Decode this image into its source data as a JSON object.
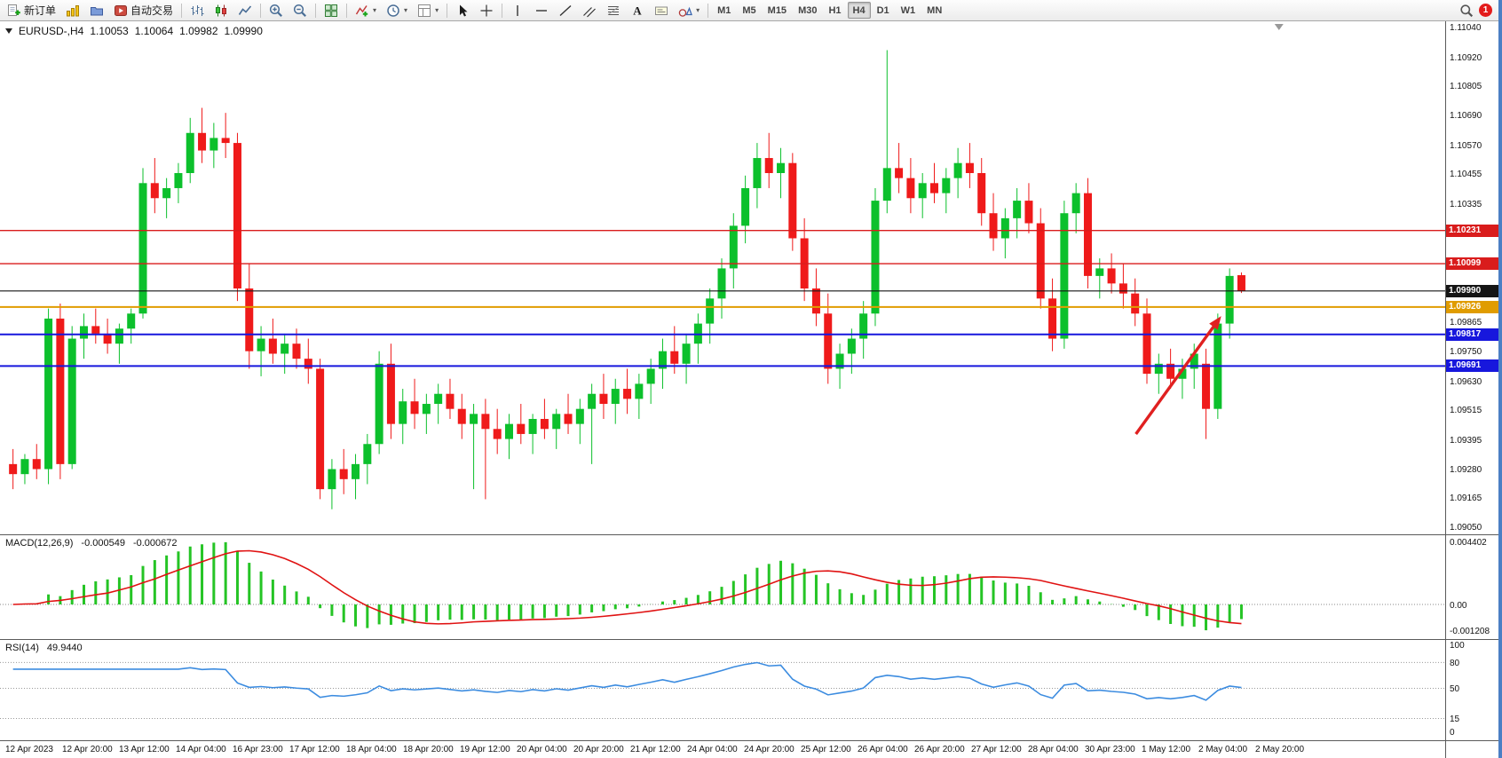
{
  "toolbar": {
    "items": [
      {
        "name": "new-order-button",
        "glyph": "new-order",
        "label": "新订单"
      },
      {
        "name": "charts-button",
        "glyph": "charts"
      },
      {
        "name": "profiles-button",
        "glyph": "profiles"
      },
      {
        "name": "autotrading-button",
        "glyph": "autotrading",
        "label": "自动交易"
      },
      {
        "type": "sep"
      },
      {
        "name": "bars-mode-button",
        "glyph": "bars-mode"
      },
      {
        "name": "candles-mode-button",
        "glyph": "candles-mode"
      },
      {
        "name": "line-mode-button",
        "glyph": "line-mode"
      },
      {
        "type": "sep"
      },
      {
        "name": "zoom-in-button",
        "glyph": "zoom-in"
      },
      {
        "name": "zoom-out-button",
        "glyph": "zoom-out"
      },
      {
        "type": "sep"
      },
      {
        "name": "tile-windows-button",
        "glyph": "tile-windows"
      },
      {
        "type": "sep"
      },
      {
        "name": "indicators-button",
        "glyph": "indicators",
        "dropdown": true
      },
      {
        "name": "periods-button",
        "glyph": "periods",
        "dropdown": true
      },
      {
        "name": "templates-button",
        "glyph": "templates",
        "dropdown": true
      },
      {
        "type": "sep"
      },
      {
        "name": "cursor-button",
        "glyph": "cursor"
      },
      {
        "name": "crosshair-button",
        "glyph": "crosshair"
      },
      {
        "type": "sep"
      },
      {
        "name": "vertical-line-button",
        "glyph": "vline"
      },
      {
        "name": "horizontal-line-button",
        "glyph": "hline"
      },
      {
        "name": "trendline-button",
        "glyph": "trendline"
      },
      {
        "name": "equidistant-channel-button",
        "glyph": "channel"
      },
      {
        "name": "fibonacci-button",
        "glyph": "fibo"
      },
      {
        "name": "text-button",
        "glyph": "text"
      },
      {
        "name": "text-label-button",
        "glyph": "label"
      },
      {
        "name": "arrows-button",
        "glyph": "shapes",
        "dropdown": true
      },
      {
        "type": "sep"
      }
    ],
    "timeframes": [
      "M1",
      "M5",
      "M15",
      "M30",
      "H1",
      "H4",
      "D1",
      "W1",
      "MN"
    ],
    "active_timeframe": "H4",
    "notification_count": "1"
  },
  "chart_header": {
    "symbol_period": "EURUSD-,H4",
    "open": "1.10053",
    "high": "1.10064",
    "low": "1.09982",
    "close": "1.09990"
  },
  "chart_data": {
    "type": "candlestick",
    "title": "EURUSD-,H4",
    "symbol": "EURUSD-",
    "timeframe": "H4",
    "price_axis": {
      "top": 1.11065,
      "bottom": 1.0902,
      "ticks": [
        "1.11040",
        "1.10920",
        "1.10805",
        "1.10690",
        "1.10570",
        "1.10455",
        "1.10335",
        "1.09865",
        "1.09750",
        "1.09630",
        "1.09515",
        "1.09395",
        "1.09280",
        "1.09165",
        "1.09050"
      ]
    },
    "hlines": [
      {
        "price": 1.10231,
        "label": "1.10231",
        "color": "#d91c1c",
        "width": 1.4
      },
      {
        "price": 1.10099,
        "label": "1.10099",
        "color": "#d91c1c",
        "width": 1.4
      },
      {
        "price": 1.0999,
        "label": "1.09990",
        "color": "#151515",
        "width": 1.1
      },
      {
        "price": 1.09926,
        "label": "1.09926",
        "color": "#e09c00",
        "width": 2
      },
      {
        "price": 1.09817,
        "label": "1.09817",
        "color": "#1717dd",
        "width": 2
      },
      {
        "price": 1.09691,
        "label": "1.09691",
        "color": "#1717dd",
        "width": 2
      }
    ],
    "candles": [
      [
        1.093,
        1.0936,
        1.092,
        1.0926
      ],
      [
        1.0926,
        1.0934,
        1.0922,
        1.0932
      ],
      [
        1.0932,
        1.0938,
        1.0924,
        1.0928
      ],
      [
        1.0928,
        1.0992,
        1.0922,
        1.0988
      ],
      [
        1.0988,
        1.0994,
        1.0924,
        1.093
      ],
      [
        1.093,
        1.0985,
        1.0928,
        1.098
      ],
      [
        1.098,
        1.099,
        1.0972,
        1.0985
      ],
      [
        1.0985,
        1.0992,
        1.0978,
        1.0982
      ],
      [
        1.0982,
        1.0988,
        1.0974,
        1.0978
      ],
      [
        1.0978,
        1.0986,
        1.097,
        1.0984
      ],
      [
        1.0984,
        1.0992,
        1.0978,
        1.099
      ],
      [
        1.099,
        1.1048,
        1.0988,
        1.1042
      ],
      [
        1.1042,
        1.1052,
        1.103,
        1.1036
      ],
      [
        1.1036,
        1.1044,
        1.1028,
        1.104
      ],
      [
        1.104,
        1.105,
        1.1034,
        1.1046
      ],
      [
        1.1046,
        1.1068,
        1.1042,
        1.1062
      ],
      [
        1.1062,
        1.1072,
        1.105,
        1.1055
      ],
      [
        1.1055,
        1.1066,
        1.1048,
        1.106
      ],
      [
        1.106,
        1.107,
        1.1052,
        1.1058
      ],
      [
        1.1058,
        1.1062,
        1.0995,
        1.1
      ],
      [
        1.1,
        1.101,
        1.0968,
        1.0975
      ],
      [
        1.0975,
        1.0985,
        1.0965,
        1.098
      ],
      [
        1.098,
        1.0988,
        1.097,
        1.0974
      ],
      [
        1.0974,
        1.0982,
        1.0966,
        1.0978
      ],
      [
        1.0978,
        1.0984,
        1.0968,
        1.0972
      ],
      [
        1.0972,
        1.098,
        1.0962,
        1.0968
      ],
      [
        1.0968,
        1.0972,
        1.0916,
        1.092
      ],
      [
        1.092,
        1.0932,
        1.0912,
        1.0928
      ],
      [
        1.0928,
        1.0936,
        1.0918,
        1.0924
      ],
      [
        1.0924,
        1.0934,
        1.0916,
        1.093
      ],
      [
        1.093,
        1.0942,
        1.0922,
        1.0938
      ],
      [
        1.0938,
        1.0975,
        1.0934,
        1.097
      ],
      [
        1.097,
        1.0978,
        1.094,
        1.0946
      ],
      [
        1.0946,
        1.096,
        1.0938,
        1.0955
      ],
      [
        1.0955,
        1.0964,
        1.0944,
        1.095
      ],
      [
        1.095,
        1.0958,
        1.0942,
        1.0954
      ],
      [
        1.0954,
        1.0962,
        1.0946,
        1.0958
      ],
      [
        1.0958,
        1.0964,
        1.0948,
        1.0952
      ],
      [
        1.0952,
        1.0958,
        1.094,
        1.0946
      ],
      [
        1.0946,
        1.0954,
        1.092,
        1.095
      ],
      [
        1.095,
        1.0956,
        1.0916,
        1.0944
      ],
      [
        1.0944,
        1.0952,
        1.0934,
        1.094
      ],
      [
        1.094,
        1.095,
        1.0932,
        1.0946
      ],
      [
        1.0946,
        1.0954,
        1.0938,
        1.0942
      ],
      [
        1.0942,
        1.095,
        1.0934,
        1.0948
      ],
      [
        1.0948,
        1.0956,
        1.094,
        1.0944
      ],
      [
        1.0944,
        1.0952,
        1.0936,
        1.095
      ],
      [
        1.095,
        1.0958,
        1.0942,
        1.0946
      ],
      [
        1.0946,
        1.0956,
        1.0938,
        1.0952
      ],
      [
        1.0952,
        1.0962,
        1.093,
        1.0958
      ],
      [
        1.0958,
        1.0966,
        1.0948,
        1.0954
      ],
      [
        1.0954,
        1.0964,
        1.0946,
        1.096
      ],
      [
        1.096,
        1.0968,
        1.095,
        1.0956
      ],
      [
        1.0956,
        1.0966,
        1.0948,
        1.0962
      ],
      [
        1.0962,
        1.0972,
        1.0954,
        1.0968
      ],
      [
        1.0968,
        1.098,
        1.096,
        1.0975
      ],
      [
        1.0975,
        1.0985,
        1.0966,
        1.097
      ],
      [
        1.097,
        1.0982,
        1.0962,
        1.0978
      ],
      [
        1.0978,
        1.099,
        1.097,
        1.0986
      ],
      [
        1.0986,
        1.1,
        1.0978,
        1.0996
      ],
      [
        1.0996,
        1.1012,
        1.0988,
        1.1008
      ],
      [
        1.1008,
        1.103,
        1.1,
        1.1025
      ],
      [
        1.1025,
        1.1045,
        1.1018,
        1.104
      ],
      [
        1.104,
        1.1058,
        1.1032,
        1.1052
      ],
      [
        1.1052,
        1.1062,
        1.104,
        1.1046
      ],
      [
        1.1046,
        1.1056,
        1.1036,
        1.105
      ],
      [
        1.105,
        1.1054,
        1.1015,
        1.102
      ],
      [
        1.102,
        1.1028,
        1.0995,
        1.1
      ],
      [
        1.1,
        1.1008,
        1.0985,
        1.099
      ],
      [
        1.099,
        1.0998,
        1.0962,
        1.0968
      ],
      [
        1.0968,
        1.0978,
        1.096,
        1.0974
      ],
      [
        1.0974,
        1.0984,
        1.0966,
        1.098
      ],
      [
        1.098,
        1.0995,
        1.0972,
        1.099
      ],
      [
        1.099,
        1.104,
        1.0985,
        1.1035
      ],
      [
        1.1035,
        1.1095,
        1.103,
        1.1048
      ],
      [
        1.1048,
        1.1058,
        1.1038,
        1.1044
      ],
      [
        1.1044,
        1.1052,
        1.103,
        1.1036
      ],
      [
        1.1036,
        1.1046,
        1.1028,
        1.1042
      ],
      [
        1.1042,
        1.105,
        1.1034,
        1.1038
      ],
      [
        1.1038,
        1.1048,
        1.103,
        1.1044
      ],
      [
        1.1044,
        1.1056,
        1.1036,
        1.105
      ],
      [
        1.105,
        1.1058,
        1.104,
        1.1046
      ],
      [
        1.1046,
        1.1052,
        1.1025,
        1.103
      ],
      [
        1.103,
        1.1038,
        1.1015,
        1.102
      ],
      [
        1.102,
        1.1032,
        1.1012,
        1.1028
      ],
      [
        1.1028,
        1.104,
        1.102,
        1.1035
      ],
      [
        1.1035,
        1.1042,
        1.1022,
        1.1026
      ],
      [
        1.1026,
        1.1032,
        1.0992,
        1.0996
      ],
      [
        1.0996,
        1.1004,
        1.0975,
        1.098
      ],
      [
        1.098,
        1.1035,
        1.0976,
        1.103
      ],
      [
        1.103,
        1.1042,
        1.1022,
        1.1038
      ],
      [
        1.1038,
        1.1044,
        1.1,
        1.1005
      ],
      [
        1.1005,
        1.1012,
        1.0996,
        1.1008
      ],
      [
        1.1008,
        1.1014,
        1.0998,
        1.1002
      ],
      [
        1.1002,
        1.101,
        1.0992,
        1.0998
      ],
      [
        1.0998,
        1.1004,
        1.0985,
        1.099
      ],
      [
        1.099,
        1.0996,
        1.0962,
        1.0966
      ],
      [
        1.0966,
        1.0974,
        1.0958,
        1.097
      ],
      [
        1.097,
        1.0976,
        1.096,
        1.0964
      ],
      [
        1.0964,
        1.0972,
        1.0956,
        1.0968
      ],
      [
        1.0968,
        1.0978,
        1.096,
        1.0974
      ],
      [
        1.097,
        1.0976,
        1.094,
        1.0952
      ],
      [
        1.0952,
        1.099,
        1.0948,
        1.0986
      ],
      [
        1.0986,
        1.1008,
        1.098,
        1.1005
      ],
      [
        1.10053,
        1.10064,
        1.09982,
        1.0999
      ]
    ],
    "colors": {
      "up": "#0cc02c",
      "down": "#ef1a1a",
      "macd_hist": "#25c425",
      "macd_signal": "#e01212",
      "rsi_line": "#3c8ce0"
    },
    "macd": {
      "label": "MACD(12,26,9)",
      "value_main": "-0.000549",
      "value_signal": "-0.000672",
      "params": [
        12,
        26,
        9
      ],
      "axis_labels": [
        "0.004402",
        "0.00",
        "-0.001208"
      ]
    },
    "rsi": {
      "label": "RSI(14)",
      "value": "49.9440",
      "period": 14,
      "levels": [
        80,
        50,
        15
      ],
      "axis_labels": [
        "100",
        "80",
        "50",
        "15",
        "0"
      ]
    },
    "time_labels": [
      "12 Apr 2023",
      "12 Apr 20:00",
      "13 Apr 12:00",
      "14 Apr 04:00",
      "16 Apr 23:00",
      "17 Apr 12:00",
      "18 Apr 04:00",
      "18 Apr 20:00",
      "19 Apr 12:00",
      "20 Apr 04:00",
      "20 Apr 20:00",
      "21 Apr 12:00",
      "24 Apr 04:00",
      "24 Apr 20:00",
      "25 Apr 12:00",
      "26 Apr 04:00",
      "26 Apr 20:00",
      "27 Apr 12:00",
      "28 Apr 04:00",
      "30 Apr 23:00",
      "1 May 12:00",
      "2 May 04:00",
      "2 May 20:00"
    ],
    "arrow": {
      "x1_frac": 0.786,
      "price1": 1.0942,
      "x2_frac": 0.845,
      "price2": 1.0989,
      "color": "#e02020"
    },
    "shift_marker_frac": 0.885
  }
}
